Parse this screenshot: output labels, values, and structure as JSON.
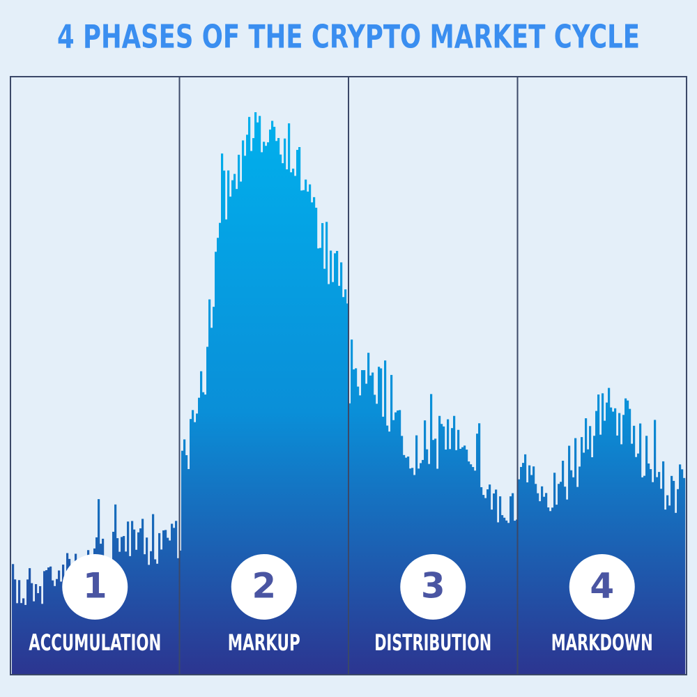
{
  "header": {
    "title": "4 PHASES OF THE CRYPTO MARKET CYCLE"
  },
  "phases": [
    {
      "number": "1",
      "label": "ACCUMULATION"
    },
    {
      "number": "2",
      "label": "MARKUP"
    },
    {
      "number": "3",
      "label": "DISTRIBUTION"
    },
    {
      "number": "4",
      "label": "MARKDOWN"
    }
  ]
}
